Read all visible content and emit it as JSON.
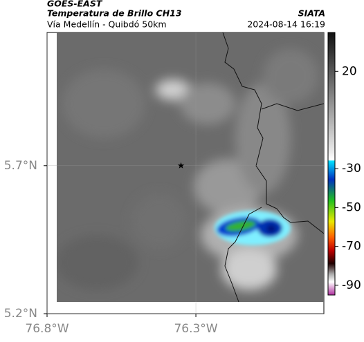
{
  "header": {
    "title": "GOES-EAST",
    "subtitle": "Temperatura de Brillo CH13",
    "route": "Vía Medellín - Quibdó 50km",
    "source": "SIATA",
    "datetime": "2024-08-14 16:19"
  },
  "map": {
    "xlim": [
      -76.8,
      -75.87
    ],
    "ylim": [
      5.2,
      6.15
    ],
    "xticks": [
      {
        "value": -76.8,
        "label": "76.8°W"
      },
      {
        "value": -76.3,
        "label": "76.3°W"
      }
    ],
    "yticks": [
      {
        "value": 5.7,
        "label": "5.7°N"
      },
      {
        "value": 5.2,
        "label": "5.2°N"
      }
    ],
    "marker": {
      "lon": -76.35,
      "lat": 5.7
    }
  },
  "colorbar": {
    "lim": [
      -95,
      40
    ],
    "ticks": [
      20,
      -30,
      -50,
      -70,
      -90
    ]
  }
}
